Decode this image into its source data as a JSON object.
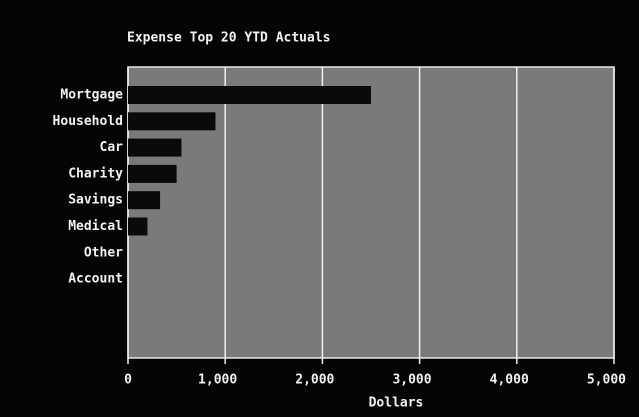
{
  "chart_data": {
    "type": "hbar",
    "title": "Expense Top 20 YTD Actuals",
    "categories": [
      "Mortgage",
      "Household",
      "Car",
      "Charity",
      "Savings",
      "Medical",
      "Other",
      "Account"
    ],
    "values": [
      2500,
      900,
      550,
      500,
      330,
      200,
      null,
      null
    ],
    "color": "#0a0a0a",
    "x_label": "Dollars",
    "xlim": [
      0,
      5000
    ],
    "xticks": [
      0,
      {
        "value": 1000,
        "label": "1,000"
      },
      {
        "value": 2000,
        "label": "2,000"
      },
      {
        "value": 3000,
        "label": "3,000"
      },
      {
        "value": 4000,
        "label": "4,000"
      },
      {
        "value": 5000,
        "label": "5,000"
      }
    ],
    "grid": true
  }
}
